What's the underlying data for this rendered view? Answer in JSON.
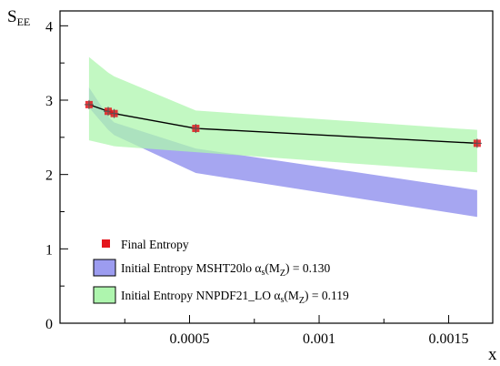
{
  "chart_data": {
    "type": "line",
    "xlabel": "x",
    "ylabel_main": "S",
    "ylabel_sub": "EE",
    "xlim": [
      0.0,
      0.00167
    ],
    "ylim": [
      0,
      4.2
    ],
    "x_ticks": [
      {
        "value": 0.0005,
        "label": "0.0005"
      },
      {
        "value": 0.001,
        "label": "0.001"
      },
      {
        "value": 0.0015,
        "label": "0.0015"
      }
    ],
    "y_ticks": [
      {
        "value": 0,
        "label": "0"
      },
      {
        "value": 1,
        "label": "1"
      },
      {
        "value": 2,
        "label": "2"
      },
      {
        "value": 3,
        "label": "3"
      },
      {
        "value": 4,
        "label": "4"
      }
    ],
    "grid": false,
    "legend_position": "lower-left",
    "series": [
      {
        "name": "Final Entropy",
        "kind": "points",
        "color": "#e4161d",
        "x": [
          0.000112,
          0.000186,
          0.000209,
          0.000524,
          0.00161
        ],
        "y": [
          2.94,
          2.85,
          2.82,
          2.62,
          2.42
        ]
      },
      {
        "name": "Initial Entropy MSHT20lo",
        "kind": "band",
        "color": "#9c9cf0",
        "x": [
          0.000112,
          0.000186,
          0.000209,
          0.000524,
          0.00161
        ],
        "upper": [
          3.17,
          2.78,
          2.7,
          2.35,
          1.79
        ],
        "lower": [
          2.9,
          2.6,
          2.53,
          2.02,
          1.43
        ]
      },
      {
        "name": "Initial Entropy NNPDF21_LO",
        "kind": "band",
        "color": "#aef5ae",
        "x": [
          0.000112,
          0.000186,
          0.000209,
          0.000524,
          0.00161
        ],
        "upper": [
          3.58,
          3.37,
          3.32,
          2.86,
          2.6
        ],
        "lower": [
          2.46,
          2.4,
          2.38,
          2.3,
          2.03
        ]
      },
      {
        "name": "",
        "kind": "line",
        "color": "#000000",
        "x": [
          0.000112,
          0.000186,
          0.000209,
          0.000524,
          0.00161
        ],
        "y": [
          2.94,
          2.85,
          2.82,
          2.62,
          2.42
        ]
      }
    ],
    "legend": [
      {
        "marker": "square",
        "color": "#e4161d",
        "label": "Final Entropy",
        "alpha_sym": "",
        "value": ""
      },
      {
        "marker": "box",
        "color": "#9c9cf0",
        "label": "Initial Entropy MSHT20lo",
        "alpha_sym": "α",
        "value": " = 0.130"
      },
      {
        "marker": "box",
        "color": "#aef5ae",
        "label": "Initial Entropy NNPDF21_LO",
        "alpha_sym": "α",
        "value": " = 0.119"
      }
    ],
    "legend_subscript_s": "s",
    "legend_paren_open": "(M",
    "legend_sub_z": "Z",
    "legend_paren_close": ")"
  }
}
